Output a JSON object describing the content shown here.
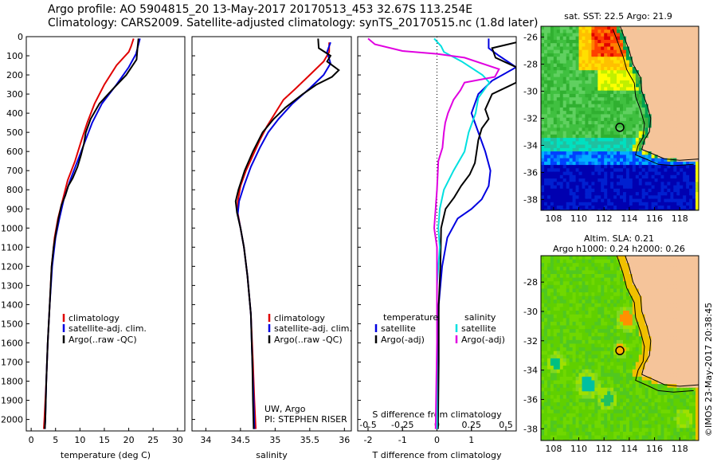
{
  "header": {
    "line1": "Argo profile: AO 5904815_20 13-May-2017 20170513_453 32.67S 113.254E",
    "line2": "Climatology: CARS2009. Satellite-adjusted climatology: synTS_20170515.nc (1.8d later)"
  },
  "colors": {
    "climatology": "#e00000",
    "satellite": "#0000e0",
    "argo": "#000000",
    "salinity_satellite": "#00e0e0",
    "salinity_argo": "#e000e0",
    "land": "#f5c49a"
  },
  "depth_axis": {
    "ticks": [
      0,
      100,
      200,
      300,
      400,
      500,
      600,
      700,
      800,
      900,
      1000,
      1100,
      1200,
      1300,
      1400,
      1500,
      1600,
      1700,
      1800,
      1900,
      2000
    ],
    "range": [
      0,
      2060
    ]
  },
  "chart_data": [
    {
      "type": "line",
      "xlabel": "temperature (deg C)",
      "xlim": [
        -1,
        31.5
      ],
      "xticks": [
        0,
        5,
        10,
        15,
        20,
        25,
        30
      ],
      "ylim": [
        0,
        2060
      ],
      "legend": {
        "placement": "center-left",
        "entries": [
          "climatology",
          "satellite-adj. clim.",
          "Argo(..raw -QC)"
        ]
      },
      "series": [
        {
          "name": "climatology",
          "color": "#e00000",
          "points": [
            [
              21,
              10
            ],
            [
              20.5,
              50
            ],
            [
              20,
              80
            ],
            [
              17.5,
              150
            ],
            [
              15,
              250
            ],
            [
              13,
              350
            ],
            [
              11.5,
              450
            ],
            [
              10.2,
              550
            ],
            [
              9,
              650
            ],
            [
              7.5,
              750
            ],
            [
              6.5,
              850
            ],
            [
              5.5,
              950
            ],
            [
              4.8,
              1050
            ],
            [
              4.2,
              1200
            ],
            [
              3.8,
              1400
            ],
            [
              3.4,
              1600
            ],
            [
              3.1,
              1800
            ],
            [
              2.7,
              2000
            ],
            [
              2.6,
              2050
            ]
          ]
        },
        {
          "name": "satellite-adj. clim.",
          "color": "#0000e0",
          "points": [
            [
              22.3,
              10
            ],
            [
              22,
              40
            ],
            [
              21.5,
              90
            ],
            [
              20,
              160
            ],
            [
              17.5,
              250
            ],
            [
              14.5,
              350
            ],
            [
              12.5,
              450
            ],
            [
              11,
              550
            ],
            [
              9.5,
              650
            ],
            [
              8,
              750
            ],
            [
              6.7,
              850
            ],
            [
              5.8,
              950
            ],
            [
              5,
              1050
            ],
            [
              4.3,
              1200
            ],
            [
              3.8,
              1400
            ],
            [
              3.4,
              1600
            ],
            [
              3.1,
              1800
            ],
            [
              2.9,
              2000
            ],
            [
              2.8,
              2050
            ]
          ]
        },
        {
          "name": "Argo(..raw -QC)",
          "color": "#000000",
          "points": [
            [
              22,
              10
            ],
            [
              21.8,
              60
            ],
            [
              21.6,
              120
            ],
            [
              19.5,
              200
            ],
            [
              16.5,
              280
            ],
            [
              14,
              350
            ],
            [
              12.2,
              430
            ],
            [
              11.2,
              500
            ],
            [
              10.8,
              560
            ],
            [
              10.2,
              620
            ],
            [
              9.5,
              680
            ],
            [
              8.5,
              740
            ],
            [
              7.6,
              780
            ],
            [
              7,
              830
            ],
            [
              6.2,
              880
            ],
            [
              5.6,
              950
            ],
            [
              5.1,
              1020
            ],
            [
              4.6,
              1100
            ],
            [
              4.2,
              1200
            ],
            [
              3.8,
              1400
            ],
            [
              3.4,
              1600
            ],
            [
              3.1,
              1800
            ],
            [
              2.9,
              2000
            ],
            [
              2.8,
              2050
            ]
          ]
        }
      ]
    },
    {
      "type": "line",
      "xlabel": "salinity",
      "xlim": [
        33.8,
        36.1
      ],
      "xticks": [
        34,
        34.5,
        35,
        35.5,
        36
      ],
      "xtick_labels": [
        "34",
        "34.5",
        "35",
        "35.5",
        "36"
      ],
      "ylim": [
        0,
        2060
      ],
      "legend": {
        "placement": "center-right",
        "entries": [
          "climatology",
          "satellite-adj. clim.",
          "Argo(..raw -QC)"
        ]
      },
      "annotations": [
        "UW, Argo",
        "PI: STEPHEN RISER"
      ],
      "series": [
        {
          "name": "climatology",
          "color": "#e00000",
          "points": [
            [
              35.78,
              30
            ],
            [
              35.78,
              80
            ],
            [
              35.7,
              130
            ],
            [
              35.5,
              200
            ],
            [
              35.3,
              270
            ],
            [
              35.12,
              330
            ],
            [
              35.0,
              400
            ],
            [
              34.88,
              470
            ],
            [
              34.78,
              540
            ],
            [
              34.68,
              620
            ],
            [
              34.58,
              700
            ],
            [
              34.5,
              780
            ],
            [
              34.46,
              860
            ],
            [
              34.46,
              920
            ],
            [
              34.5,
              1000
            ],
            [
              34.55,
              1100
            ],
            [
              34.6,
              1250
            ],
            [
              34.65,
              1450
            ],
            [
              34.68,
              1700
            ],
            [
              34.7,
              1900
            ],
            [
              34.72,
              2050
            ]
          ]
        },
        {
          "name": "satellite-adj. clim.",
          "color": "#0000e0",
          "points": [
            [
              35.8,
              30
            ],
            [
              35.75,
              80
            ],
            [
              35.8,
              140
            ],
            [
              35.7,
              200
            ],
            [
              35.5,
              270
            ],
            [
              35.25,
              350
            ],
            [
              35.05,
              430
            ],
            [
              34.9,
              500
            ],
            [
              34.78,
              580
            ],
            [
              34.65,
              680
            ],
            [
              34.55,
              780
            ],
            [
              34.48,
              860
            ],
            [
              34.46,
              930
            ],
            [
              34.5,
              1000
            ],
            [
              34.55,
              1100
            ],
            [
              34.6,
              1250
            ],
            [
              34.65,
              1450
            ],
            [
              34.67,
              1700
            ],
            [
              34.69,
              1900
            ],
            [
              34.7,
              2050
            ]
          ]
        },
        {
          "name": "Argo(..raw -QC)",
          "color": "#000000",
          "points": [
            [
              35.62,
              10
            ],
            [
              35.63,
              60
            ],
            [
              35.8,
              100
            ],
            [
              35.75,
              130
            ],
            [
              35.92,
              175
            ],
            [
              35.82,
              210
            ],
            [
              35.6,
              250
            ],
            [
              35.4,
              300
            ],
            [
              35.15,
              370
            ],
            [
              34.98,
              430
            ],
            [
              34.82,
              500
            ],
            [
              34.68,
              600
            ],
            [
              34.56,
              700
            ],
            [
              34.47,
              800
            ],
            [
              34.43,
              860
            ],
            [
              34.45,
              920
            ],
            [
              34.5,
              1000
            ],
            [
              34.55,
              1100
            ],
            [
              34.6,
              1250
            ],
            [
              34.65,
              1450
            ],
            [
              34.67,
              1700
            ],
            [
              34.68,
              1900
            ],
            [
              34.69,
              2050
            ]
          ]
        }
      ]
    },
    {
      "type": "line",
      "xlabel": "T difference from climatology",
      "xlabel_top": "S difference from climatology",
      "xlim": [
        -2.3,
        2.3
      ],
      "xticks": [
        -2,
        -1,
        0,
        1
      ],
      "xticks_top": [
        -0.5,
        -0.25,
        0,
        0.25,
        0.5
      ],
      "xtick_labels_top": [
        "-0.5",
        "-0.25",
        "0",
        "0.25",
        "0.5"
      ],
      "ylim": [
        0,
        2060
      ],
      "legend": {
        "placement": "center",
        "entries": [
          "temperature",
          "satellite",
          "Argo(-adj)",
          "salinity",
          "satellite",
          "Argo(-adj)"
        ]
      },
      "series": [
        {
          "name": "satellite",
          "color": "#0000e0",
          "points": [
            [
              1.5,
              10
            ],
            [
              1.5,
              60
            ],
            [
              1.8,
              100
            ],
            [
              2.3,
              160
            ],
            [
              1.6,
              230
            ],
            [
              1.2,
              300
            ],
            [
              1.0,
              400
            ],
            [
              1.2,
              500
            ],
            [
              1.4,
              600
            ],
            [
              1.55,
              700
            ],
            [
              1.5,
              780
            ],
            [
              1.3,
              850
            ],
            [
              1.0,
              900
            ],
            [
              0.6,
              950
            ],
            [
              0.3,
              1050
            ],
            [
              0.15,
              1200
            ],
            [
              0.05,
              1400
            ],
            [
              0.02,
              1700
            ],
            [
              0.0,
              2050
            ]
          ]
        },
        {
          "name": "Argo(-adj)",
          "color": "#000000",
          "points": [
            [
              2.3,
              30
            ],
            [
              1.6,
              60
            ],
            [
              1.7,
              110
            ],
            [
              2.3,
              160
            ],
            [
              2.3,
              240
            ],
            [
              1.6,
              300
            ],
            [
              1.4,
              380
            ],
            [
              1.5,
              430
            ],
            [
              1.3,
              480
            ],
            [
              1.2,
              540
            ],
            [
              1.15,
              600
            ],
            [
              1.1,
              660
            ],
            [
              0.95,
              720
            ],
            [
              0.7,
              780
            ],
            [
              0.5,
              840
            ],
            [
              0.25,
              900
            ],
            [
              0.12,
              1000
            ],
            [
              0.1,
              1200
            ],
            [
              0.05,
              1400
            ],
            [
              0.05,
              1700
            ],
            [
              0.03,
              2050
            ]
          ]
        },
        {
          "name": "satellite",
          "color": "#00e0e0",
          "points": [
            [
              -0.02,
              10
            ],
            [
              0.03,
              50
            ],
            [
              0.05,
              80
            ],
            [
              0.18,
              130
            ],
            [
              0.33,
              200
            ],
            [
              0.38,
              240
            ],
            [
              0.3,
              320
            ],
            [
              0.28,
              400
            ],
            [
              0.23,
              500
            ],
            [
              0.2,
              600
            ],
            [
              0.12,
              700
            ],
            [
              0.05,
              800
            ],
            [
              0.02,
              900
            ],
            [
              0.01,
              1000
            ],
            [
              0.02,
              1100
            ],
            [
              0.0,
              1300
            ],
            [
              0.0,
              1600
            ],
            [
              0.0,
              2050
            ]
          ]
        },
        {
          "name": "Argo(-adj)",
          "color": "#e000e0",
          "points": [
            [
              -0.5,
              10
            ],
            [
              -0.45,
              40
            ],
            [
              -0.25,
              75
            ],
            [
              0.0,
              90
            ],
            [
              0.2,
              110
            ],
            [
              0.45,
              170
            ],
            [
              0.42,
              210
            ],
            [
              0.2,
              240
            ],
            [
              0.17,
              280
            ],
            [
              0.12,
              330
            ],
            [
              0.08,
              400
            ],
            [
              0.06,
              450
            ],
            [
              0.05,
              500
            ],
            [
              0.04,
              580
            ],
            [
              0.01,
              650
            ],
            [
              0.0,
              800
            ],
            [
              -0.01,
              900
            ],
            [
              -0.02,
              1000
            ],
            [
              0.0,
              1100
            ],
            [
              0.0,
              1300
            ],
            [
              0.0,
              1600
            ],
            [
              -0.01,
              2050
            ]
          ]
        }
      ]
    }
  ],
  "maps": {
    "sst": {
      "title": "sat. SST: 22.5 Argo: 21.9",
      "xticks": [
        108,
        110,
        112,
        114,
        116,
        118
      ],
      "yticks": [
        -26,
        -28,
        -30,
        -32,
        -34,
        -36,
        -38
      ],
      "xlim": [
        107,
        119.5
      ],
      "ylim": [
        -38.8,
        -25.2
      ]
    },
    "sla": {
      "title": "Altim. SLA: 0.21",
      "subtitle": "Argo h1000: 0.24 h2000: 0.26",
      "xticks": [
        108,
        110,
        112,
        114,
        116,
        118
      ],
      "yticks": [
        -28,
        -30,
        -32,
        -34,
        -36,
        -38
      ],
      "xlim": [
        107,
        119.5
      ],
      "ylim": [
        -38.8,
        -26.2
      ]
    },
    "argo_position": {
      "lon": 113.254,
      "lat": -32.67
    }
  },
  "footer": {
    "credit": "©IMOS 23-May-2017 20:38:45"
  }
}
